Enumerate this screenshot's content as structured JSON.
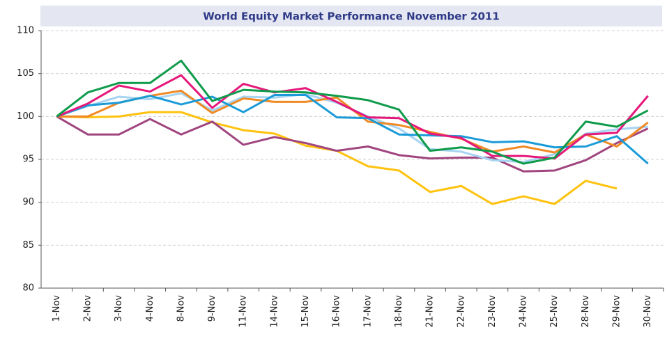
{
  "chart_data": {
    "type": "line",
    "title": "World Equity Market Performance November 2011",
    "categories": [
      "1-Nov",
      "2-Nov",
      "3-Nov",
      "4-Nov",
      "8-Nov",
      "9-Nov",
      "11-Nov",
      "14-Nov",
      "15-Nov",
      "16-Nov",
      "17-Nov",
      "18-Nov",
      "21-Nov",
      "22-Nov",
      "23-Nov",
      "24-Nov",
      "25-Nov",
      "28-Nov",
      "29-Nov",
      "30-Nov"
    ],
    "series": [
      {
        "color": "#ffc20e",
        "values": [
          100,
          99.9,
          100,
          100.5,
          100.5,
          99.3,
          98.4,
          98,
          96.6,
          96,
          94.2,
          93.7,
          91.2,
          91.9,
          89.8,
          90.7,
          89.8,
          92.5,
          91.6,
          null
        ]
      },
      {
        "color": "#a0457f",
        "values": [
          100,
          97.9,
          97.9,
          99.7,
          97.9,
          99.4,
          96.7,
          97.6,
          96.9,
          96,
          96.5,
          95.5,
          95.1,
          95.2,
          95.2,
          93.6,
          93.7,
          94.9,
          96.9,
          98.6
        ]
      },
      {
        "color": "#a6d4f2",
        "values": [
          100,
          101.2,
          102.3,
          102,
          102.7,
          100.7,
          102.3,
          102.2,
          102.6,
          101.6,
          100,
          98.6,
          96.2,
          95.9,
          94.9,
          94.7,
          95.6,
          98,
          98.5,
          98.8
        ]
      },
      {
        "color": "#f08a24",
        "values": [
          100,
          100,
          101.6,
          102.4,
          103,
          100.4,
          102.1,
          101.7,
          101.7,
          102.2,
          99.4,
          99,
          98.2,
          97.4,
          95.9,
          96.5,
          95.8,
          97.9,
          96.5,
          99.3
        ]
      },
      {
        "color": "#1a9bd7",
        "values": [
          100,
          101.3,
          101.6,
          102.4,
          101.4,
          102.3,
          100.5,
          102.5,
          102.5,
          99.9,
          99.8,
          97.9,
          97.8,
          97.7,
          97,
          97.1,
          96.4,
          96.5,
          97.7,
          94.5
        ]
      },
      {
        "color": "#e6177a",
        "values": [
          100,
          101.5,
          103.6,
          102.9,
          104.8,
          101,
          103.8,
          102.8,
          103.3,
          101.7,
          99.9,
          99.8,
          98,
          97.5,
          95.4,
          95.4,
          95.1,
          97.9,
          98.1,
          102.4
        ]
      },
      {
        "color": "#0f9b4b",
        "values": [
          100,
          102.8,
          103.9,
          103.9,
          106.5,
          101.8,
          103.1,
          102.9,
          102.8,
          102.4,
          101.9,
          100.8,
          96,
          96.4,
          95.9,
          94.5,
          95.2,
          99.4,
          98.8,
          100.7
        ]
      }
    ],
    "ylim": [
      80,
      110
    ],
    "yticks": [
      80,
      85,
      90,
      95,
      100,
      105,
      110
    ],
    "grid": true
  }
}
